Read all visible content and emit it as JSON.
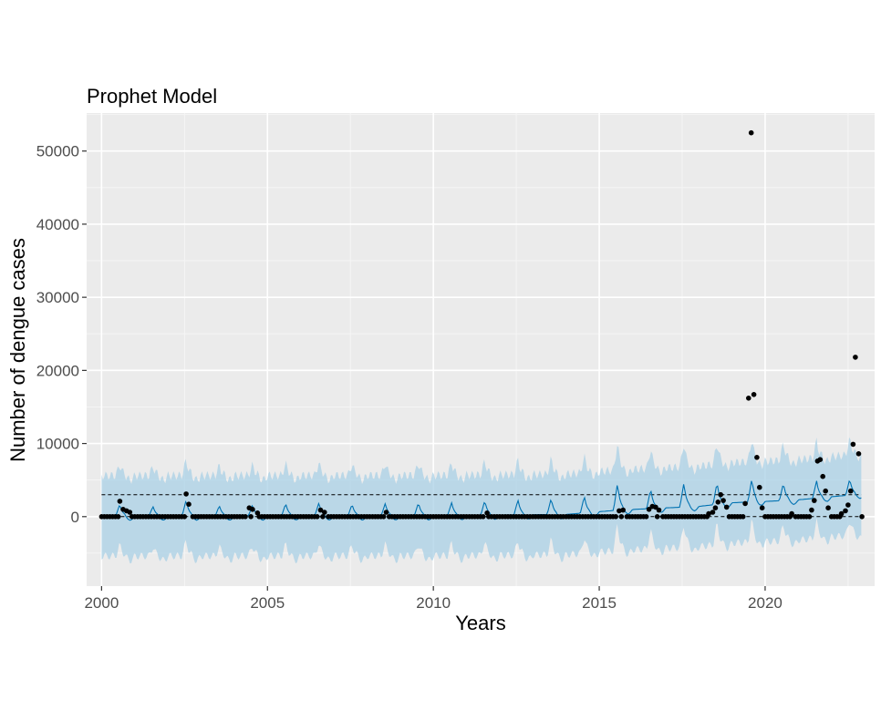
{
  "chart_data": {
    "type": "line",
    "title": "Prophet Model",
    "xlabel": "Years",
    "ylabel": "Number of dengue cases",
    "xlim": [
      1999.55,
      2023.3
    ],
    "ylim": [
      -9500,
      55200
    ],
    "x_ticks": [
      2000,
      2005,
      2010,
      2015,
      2020
    ],
    "x_tick_labels": [
      "2000",
      "2005",
      "2010",
      "2015",
      "2020"
    ],
    "y_ticks": [
      0,
      10000,
      20000,
      30000,
      40000,
      50000
    ],
    "y_tick_labels": [
      "0",
      "10000",
      "20000",
      "30000",
      "40000",
      "50000"
    ],
    "reference_lines": [
      {
        "name": "cap",
        "style": "dashed",
        "y": 3000,
        "x_start": 2000,
        "x_end": 2022.9
      },
      {
        "name": "floor",
        "style": "dashed",
        "y": 0,
        "x_start": 2000,
        "x_end": 2022.9
      }
    ],
    "forecast": {
      "baseline_trend": [
        [
          2000,
          100
        ],
        [
          2010,
          150
        ],
        [
          2014,
          300
        ],
        [
          2015.6,
          900
        ],
        [
          2018,
          1400
        ],
        [
          2019,
          1900
        ],
        [
          2020.1,
          2100
        ],
        [
          2021,
          2300
        ],
        [
          2022.9,
          3100
        ]
      ],
      "seasonal_peaks": [
        [
          2000.55,
          1700
        ],
        [
          2001.55,
          1400
        ],
        [
          2002.55,
          2300
        ],
        [
          2003.55,
          1500
        ],
        [
          2004.55,
          1600
        ],
        [
          2005.55,
          1800
        ],
        [
          2006.55,
          1900
        ],
        [
          2007.55,
          1700
        ],
        [
          2008.55,
          1800
        ],
        [
          2009.55,
          1900
        ],
        [
          2010.55,
          1900
        ],
        [
          2011.55,
          2200
        ],
        [
          2012.55,
          2300
        ],
        [
          2013.55,
          2500
        ],
        [
          2014.55,
          2800
        ],
        [
          2015.55,
          4600
        ],
        [
          2016.55,
          3800
        ],
        [
          2017.55,
          4600
        ],
        [
          2018.55,
          4700
        ],
        [
          2019.6,
          5200
        ],
        [
          2020.55,
          4600
        ],
        [
          2021.55,
          4900
        ],
        [
          2022.55,
          5200
        ]
      ],
      "interval_halfwidth": 5500
    },
    "observed": {
      "baseline_value": 0,
      "cases": [
        [
          2000.55,
          2100
        ],
        [
          2000.65,
          1000
        ],
        [
          2000.75,
          800
        ],
        [
          2000.85,
          600
        ],
        [
          2002.55,
          3100
        ],
        [
          2002.63,
          1700
        ],
        [
          2004.45,
          1200
        ],
        [
          2004.55,
          1000
        ],
        [
          2004.7,
          500
        ],
        [
          2006.6,
          900
        ],
        [
          2006.72,
          600
        ],
        [
          2008.58,
          600
        ],
        [
          2011.62,
          500
        ],
        [
          2015.6,
          800
        ],
        [
          2015.72,
          900
        ],
        [
          2016.5,
          1000
        ],
        [
          2016.6,
          1400
        ],
        [
          2016.7,
          1300
        ],
        [
          2016.8,
          900
        ],
        [
          2018.3,
          400
        ],
        [
          2018.42,
          600
        ],
        [
          2018.5,
          1200
        ],
        [
          2018.58,
          2000
        ],
        [
          2018.66,
          3000
        ],
        [
          2018.74,
          2200
        ],
        [
          2018.84,
          1300
        ],
        [
          2019.4,
          1800
        ],
        [
          2019.5,
          16200
        ],
        [
          2019.58,
          52500
        ],
        [
          2019.66,
          16700
        ],
        [
          2019.75,
          8100
        ],
        [
          2019.83,
          4000
        ],
        [
          2019.91,
          1200
        ],
        [
          2020.8,
          400
        ],
        [
          2021.4,
          900
        ],
        [
          2021.48,
          2200
        ],
        [
          2021.58,
          7600
        ],
        [
          2021.66,
          7800
        ],
        [
          2021.74,
          5500
        ],
        [
          2021.82,
          3500
        ],
        [
          2021.9,
          1200
        ],
        [
          2022.3,
          400
        ],
        [
          2022.42,
          800
        ],
        [
          2022.5,
          1600
        ],
        [
          2022.58,
          3500
        ],
        [
          2022.65,
          9900
        ],
        [
          2022.72,
          21800
        ],
        [
          2022.82,
          8600
        ]
      ]
    },
    "colors": {
      "panel_background": "#ebebeb",
      "grid_major": "#ffffff",
      "grid_minor": "#f5f5f5",
      "interval_fill": "#a9d0e6",
      "forecast_line": "#0072b2",
      "points": "#000000",
      "reference_line": "#000000"
    },
    "grid": true,
    "legend": "none"
  }
}
